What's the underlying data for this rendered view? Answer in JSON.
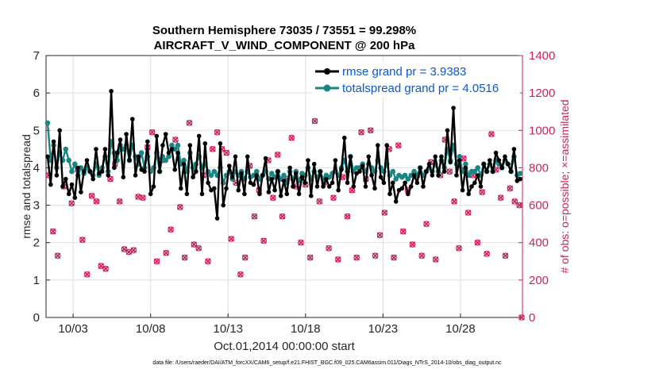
{
  "colors": {
    "rmse": "#000000",
    "spread": "#1a8585",
    "obs": "#cc1f5e",
    "legend_text": "#0b57d0"
  },
  "chart_data": {
    "type": "line",
    "title": "Southern Hemisphere 73035 / 73551 = 99.298%",
    "subtitle": "AIRCRAFT_V_WIND_COMPONENT @ 200 hPa",
    "xlabel": "Oct.01,2014 00:00:00 start",
    "ylabel": "rmse and totalspread",
    "ylabel_right": "# of obs: o=possible; ×=assimilated",
    "x_ticks": [
      "10/03",
      "10/08",
      "10/13",
      "10/18",
      "10/23",
      "10/28"
    ],
    "x_tick_days": [
      3,
      8,
      13,
      18,
      23,
      28
    ],
    "xlim": [
      1.25,
      32.0
    ],
    "ylim": [
      0,
      7
    ],
    "y_ticks": [
      0,
      1,
      2,
      3,
      4,
      5,
      6,
      7
    ],
    "ylim_right": [
      0,
      1400
    ],
    "y_ticks_right": [
      0,
      200,
      400,
      600,
      800,
      1000,
      1200,
      1400
    ],
    "grid": true,
    "legend_position": "top-right",
    "footnote": "data file: /Users/raeder/DAI/ATM_forcXX/CAM6_setup/f.e21.FHIST_BGC.f09_025.CAM6assim.011/Diags_NTrS_2014-10/obs_diag_output.nc",
    "series": [
      {
        "name": "rmse grand pr = 3.9383",
        "axis": "left",
        "values": [
          4.3,
          3.55,
          4.7,
          3.8,
          5.0,
          3.5,
          3.7,
          3.3,
          3.55,
          3.2,
          4.0,
          3.35,
          3.9,
          4.2,
          3.9,
          3.7,
          4.5,
          3.85,
          3.9,
          4.5,
          3.8,
          6.05,
          4.0,
          4.4,
          4.75,
          3.75,
          4.9,
          4.2,
          5.3,
          3.8,
          4.3,
          3.95,
          3.9,
          4.7,
          3.3,
          3.5,
          4.85,
          3.9,
          4.6,
          4.9,
          4.4,
          4.5,
          3.95,
          4.4,
          3.45,
          4.1,
          3.3,
          4.6,
          3.75,
          3.9,
          4.85,
          3.3,
          4.65,
          3.6,
          3.4,
          3.45,
          2.65,
          4.65,
          3.0,
          3.45,
          4.05,
          3.75,
          4.3,
          3.4,
          3.85,
          3.3,
          4.3,
          3.6,
          3.55,
          3.8,
          3.3,
          3.8,
          4.25,
          3.35,
          3.7,
          3.4,
          3.9,
          3.25,
          3.65,
          3.3,
          4.0,
          3.5,
          3.85,
          3.3,
          3.75,
          3.6,
          4.2,
          3.25,
          4.1,
          3.5,
          3.9,
          3.5,
          3.7,
          3.5,
          3.6,
          4.2,
          3.4,
          3.95,
          4.8,
          3.6,
          4.3,
          3.5,
          3.85,
          3.9,
          4.05,
          3.5,
          4.3,
          3.8,
          3.45,
          4.6,
          3.75,
          3.6,
          4.6,
          3.3,
          3.6,
          3.1,
          3.4,
          3.45,
          3.6,
          3.3,
          3.5,
          3.8,
          3.6,
          4.0,
          3.5,
          3.9,
          4.1,
          3.8,
          4.3,
          3.8,
          4.3,
          3.9,
          5.0,
          4.15,
          5.6,
          3.8,
          4.2,
          3.4,
          4.0,
          3.3,
          3.5,
          3.6,
          3.8,
          3.5,
          4.1,
          3.9,
          4.2,
          3.9,
          4.4,
          4.2,
          4.0,
          4.3,
          4.1,
          3.9,
          4.5,
          3.65,
          3.7
        ]
      },
      {
        "name": "totalspread grand pr = 4.0516",
        "axis": "left",
        "values": [
          5.2,
          4.2,
          4.6,
          4.0,
          4.4,
          4.2,
          4.5,
          4.2,
          3.9,
          4.1,
          3.8,
          4.0,
          3.85,
          4.0,
          3.9,
          3.8,
          4.1,
          3.8,
          4.0,
          4.3,
          3.9,
          4.7,
          4.4,
          4.2,
          4.6,
          4.5,
          4.6,
          4.2,
          4.6,
          4.3,
          4.1,
          4.4,
          4.0,
          4.3,
          3.9,
          4.0,
          4.4,
          3.9,
          4.3,
          4.2,
          4.3,
          4.6,
          4.5,
          4.6,
          4.1,
          4.2,
          3.9,
          4.4,
          4.0,
          4.1,
          4.3,
          4.0,
          4.1,
          3.9,
          3.8,
          3.9,
          3.8,
          4.0,
          3.6,
          3.8,
          3.9,
          3.7,
          3.9,
          3.8,
          3.9,
          3.7,
          3.9,
          3.75,
          3.8,
          3.9,
          3.7,
          3.8,
          3.9,
          3.7,
          3.85,
          3.75,
          3.9,
          3.7,
          3.8,
          3.6,
          3.9,
          3.7,
          3.9,
          3.65,
          3.85,
          3.8,
          4.0,
          3.7,
          3.9,
          3.75,
          3.9,
          3.7,
          3.8,
          3.75,
          3.85,
          3.9,
          3.8,
          4.0,
          4.2,
          3.9,
          4.3,
          3.9,
          4.0,
          4.0,
          4.1,
          3.9,
          4.1,
          4.0,
          3.9,
          4.2,
          4.0,
          3.9,
          4.1,
          3.8,
          3.9,
          3.7,
          3.8,
          3.75,
          3.8,
          3.7,
          3.8,
          3.9,
          3.8,
          4.0,
          3.8,
          3.9,
          4.0,
          3.9,
          4.1,
          3.9,
          4.2,
          4.0,
          4.5,
          4.2,
          4.6,
          4.1,
          4.3,
          3.9,
          4.1,
          3.8,
          3.9,
          3.9,
          4.0,
          3.8,
          4.1,
          3.9,
          4.1,
          3.9,
          4.2,
          4.1,
          4.0,
          4.2,
          4.1,
          3.9,
          4.3,
          3.8,
          3.85
        ]
      },
      {
        "name": "# of obs",
        "axis": "right",
        "style": "markers",
        "x": [
          1.4,
          1.7,
          2.0,
          2.4,
          2.9,
          3.3,
          3.6,
          3.9,
          4.2,
          4.5,
          4.8,
          5.1,
          5.4,
          5.7,
          6.0,
          6.3,
          6.6,
          6.9,
          7.2,
          7.5,
          7.8,
          8.1,
          8.4,
          8.7,
          9.0,
          9.3,
          9.6,
          9.9,
          10.2,
          10.5,
          10.8,
          11.1,
          11.4,
          11.7,
          12.0,
          12.3,
          12.6,
          12.9,
          13.2,
          13.5,
          13.8,
          14.1,
          14.4,
          14.7,
          15.0,
          15.3,
          15.6,
          15.9,
          16.2,
          16.5,
          16.8,
          17.1,
          17.4,
          17.7,
          18.0,
          18.3,
          18.6,
          18.9,
          19.2,
          19.5,
          19.8,
          20.1,
          20.4,
          20.7,
          21.0,
          21.3,
          21.6,
          21.9,
          22.2,
          22.5,
          22.8,
          23.1,
          23.4,
          23.7,
          24.0,
          24.3,
          24.6,
          24.9,
          25.2,
          25.5,
          25.8,
          26.1,
          26.4,
          26.7,
          27.0,
          27.3,
          27.6,
          27.9,
          28.2,
          28.5,
          28.8,
          29.1,
          29.4,
          29.7,
          30.0,
          30.3,
          30.6,
          30.9,
          31.2,
          31.5,
          31.8,
          31.95
        ],
        "values": [
          760,
          460,
          330,
          700,
          610,
          790,
          415,
          230,
          650,
          620,
          275,
          260,
          740,
          820,
          620,
          365,
          350,
          360,
          645,
          640,
          910,
          990,
          300,
          840,
          345,
          470,
          950,
          590,
          320,
          1040,
          390,
          370,
          760,
          300,
          900,
          990,
          900,
          880,
          420,
          720,
          230,
          320,
          810,
          540,
          680,
          410,
          840,
          640,
          870,
          540,
          740,
          960,
          700,
          400,
          710,
          320,
          1050,
          620,
          720,
          370,
          640,
          310,
          750,
          540,
          680,
          320,
          990,
          740,
          1000,
          330,
          440,
          560,
          900,
          320,
          920,
          460,
          680,
          390,
          760,
          330,
          500,
          830,
          310,
          760,
          950,
          780,
          620,
          370,
          850,
          560,
          760,
          400,
          670,
          340,
          980,
          790,
          640,
          330,
          690,
          620,
          600,
          0
        ]
      }
    ]
  }
}
